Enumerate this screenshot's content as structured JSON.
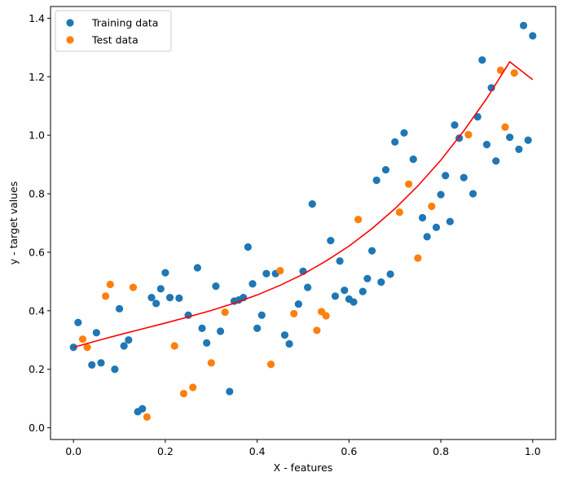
{
  "chart_data": {
    "type": "scatter",
    "title": "",
    "xlabel": "X - features",
    "ylabel": "y - target values",
    "xlim": [
      -0.05,
      1.05
    ],
    "ylim": [
      -0.04,
      1.44
    ],
    "xticks": [
      0.0,
      0.2,
      0.4,
      0.6,
      0.8,
      1.0
    ],
    "xtick_labels": [
      "0.0",
      "0.2",
      "0.4",
      "0.6",
      "0.8",
      "1.0"
    ],
    "yticks": [
      0.0,
      0.2,
      0.4,
      0.6,
      0.8,
      1.0,
      1.2,
      1.4
    ],
    "ytick_labels": [
      "0.0",
      "0.2",
      "0.4",
      "0.6",
      "0.8",
      "1.0",
      "1.2",
      "1.4"
    ],
    "grid": false,
    "legend_position": "top-left",
    "series": [
      {
        "name": "Training data",
        "type": "scatter",
        "color": "#1f77b4",
        "points": [
          [
            0.0,
            0.275
          ],
          [
            0.01,
            0.36
          ],
          [
            0.04,
            0.215
          ],
          [
            0.05,
            0.325
          ],
          [
            0.06,
            0.222
          ],
          [
            0.09,
            0.2
          ],
          [
            0.1,
            0.407
          ],
          [
            0.11,
            0.28
          ],
          [
            0.12,
            0.3
          ],
          [
            0.14,
            0.055
          ],
          [
            0.15,
            0.065
          ],
          [
            0.17,
            0.445
          ],
          [
            0.18,
            0.425
          ],
          [
            0.19,
            0.475
          ],
          [
            0.2,
            0.53
          ],
          [
            0.21,
            0.445
          ],
          [
            0.23,
            0.443
          ],
          [
            0.25,
            0.385
          ],
          [
            0.27,
            0.547
          ],
          [
            0.28,
            0.34
          ],
          [
            0.29,
            0.29
          ],
          [
            0.31,
            0.484
          ],
          [
            0.32,
            0.33
          ],
          [
            0.34,
            0.124
          ],
          [
            0.35,
            0.433
          ],
          [
            0.36,
            0.437
          ],
          [
            0.37,
            0.445
          ],
          [
            0.38,
            0.618
          ],
          [
            0.39,
            0.492
          ],
          [
            0.4,
            0.34
          ],
          [
            0.41,
            0.385
          ],
          [
            0.42,
            0.527
          ],
          [
            0.44,
            0.527
          ],
          [
            0.46,
            0.317
          ],
          [
            0.47,
            0.287
          ],
          [
            0.49,
            0.423
          ],
          [
            0.5,
            0.535
          ],
          [
            0.51,
            0.48
          ],
          [
            0.52,
            0.765
          ],
          [
            0.56,
            0.64
          ],
          [
            0.57,
            0.45
          ],
          [
            0.58,
            0.57
          ],
          [
            0.59,
            0.47
          ],
          [
            0.6,
            0.44
          ],
          [
            0.61,
            0.43
          ],
          [
            0.63,
            0.466
          ],
          [
            0.64,
            0.51
          ],
          [
            0.65,
            0.605
          ],
          [
            0.66,
            0.846
          ],
          [
            0.67,
            0.498
          ],
          [
            0.68,
            0.882
          ],
          [
            0.69,
            0.525
          ],
          [
            0.7,
            0.977
          ],
          [
            0.72,
            1.008
          ],
          [
            0.74,
            0.918
          ],
          [
            0.76,
            0.718
          ],
          [
            0.77,
            0.653
          ],
          [
            0.79,
            0.685
          ],
          [
            0.8,
            0.797
          ],
          [
            0.81,
            0.862
          ],
          [
            0.82,
            0.705
          ],
          [
            0.83,
            1.035
          ],
          [
            0.84,
            0.99
          ],
          [
            0.85,
            0.855
          ],
          [
            0.87,
            0.8
          ],
          [
            0.88,
            1.063
          ],
          [
            0.89,
            1.257
          ],
          [
            0.9,
            0.968
          ],
          [
            0.91,
            1.162
          ],
          [
            0.92,
            0.912
          ],
          [
            0.95,
            0.993
          ],
          [
            0.97,
            0.952
          ],
          [
            0.98,
            1.375
          ],
          [
            0.99,
            0.983
          ],
          [
            1.0,
            1.34
          ]
        ]
      },
      {
        "name": "Test data",
        "type": "scatter",
        "color": "#ff7f0e",
        "points": [
          [
            0.02,
            0.303
          ],
          [
            0.03,
            0.275
          ],
          [
            0.07,
            0.45
          ],
          [
            0.08,
            0.49
          ],
          [
            0.13,
            0.48
          ],
          [
            0.16,
            0.037
          ],
          [
            0.22,
            0.28
          ],
          [
            0.24,
            0.117
          ],
          [
            0.26,
            0.138
          ],
          [
            0.3,
            0.222
          ],
          [
            0.33,
            0.395
          ],
          [
            0.43,
            0.217
          ],
          [
            0.45,
            0.537
          ],
          [
            0.48,
            0.39
          ],
          [
            0.53,
            0.333
          ],
          [
            0.54,
            0.397
          ],
          [
            0.55,
            0.383
          ],
          [
            0.62,
            0.712
          ],
          [
            0.71,
            0.737
          ],
          [
            0.73,
            0.833
          ],
          [
            0.75,
            0.58
          ],
          [
            0.78,
            0.757
          ],
          [
            0.86,
            1.002
          ],
          [
            0.93,
            1.222
          ],
          [
            0.94,
            1.028
          ],
          [
            0.96,
            1.213
          ]
        ]
      },
      {
        "name": "",
        "type": "line",
        "color": "#ff0000",
        "points": [
          [
            0.0,
            0.275
          ],
          [
            0.05,
            0.297
          ],
          [
            0.1,
            0.318
          ],
          [
            0.15,
            0.338
          ],
          [
            0.2,
            0.358
          ],
          [
            0.25,
            0.379
          ],
          [
            0.3,
            0.401
          ],
          [
            0.35,
            0.426
          ],
          [
            0.4,
            0.454
          ],
          [
            0.45,
            0.487
          ],
          [
            0.5,
            0.525
          ],
          [
            0.55,
            0.57
          ],
          [
            0.6,
            0.621
          ],
          [
            0.65,
            0.681
          ],
          [
            0.7,
            0.749
          ],
          [
            0.75,
            0.827
          ],
          [
            0.8,
            0.915
          ],
          [
            0.85,
            1.015
          ],
          [
            0.9,
            1.126
          ],
          [
            0.95,
            1.251
          ],
          [
            1.0,
            1.19
          ]
        ]
      }
    ]
  }
}
